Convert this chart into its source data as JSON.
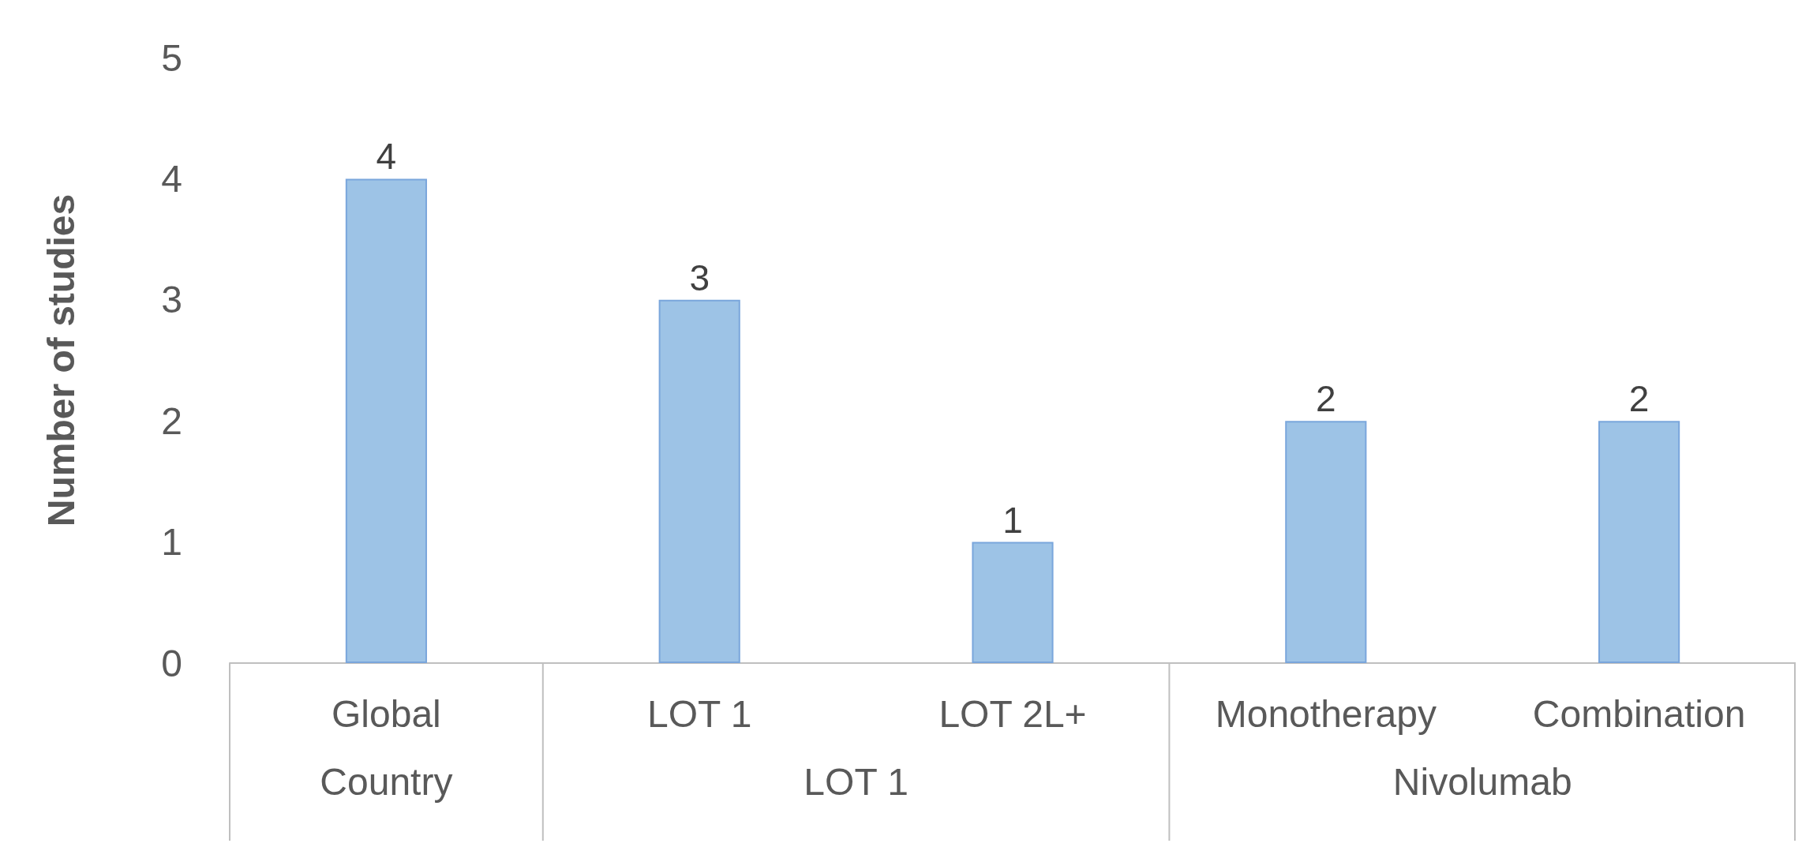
{
  "chart_data": {
    "type": "bar",
    "ylabel": "Number of studies",
    "categories": [
      "Global",
      "LOT 1",
      "LOT 2L+",
      "Monotherapy",
      "Combination"
    ],
    "values": [
      4,
      3,
      1,
      2,
      2
    ],
    "color": "#9dc3e6",
    "ylim": [
      0,
      5
    ],
    "yticks": [
      0,
      1,
      2,
      3,
      4,
      5
    ],
    "grid": false,
    "data_labels": true,
    "annotations": [
      "Country",
      "LOT 1",
      "Nivolumab"
    ]
  }
}
